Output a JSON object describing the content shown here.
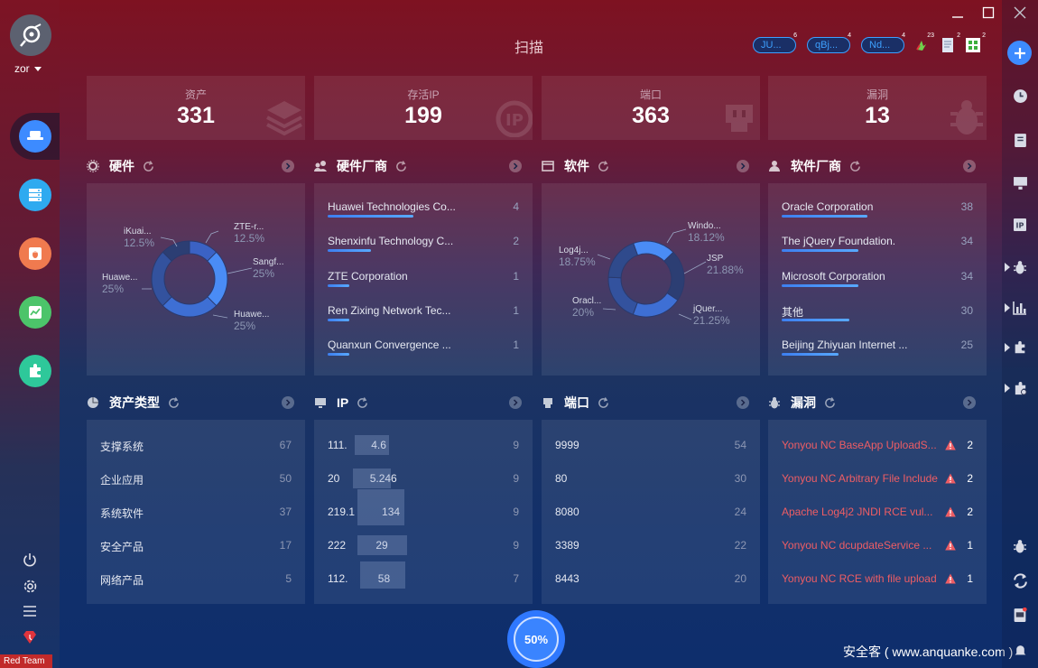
{
  "app": {
    "page_title": "扫描",
    "user_name": "zor",
    "watermark": "安全客 ( www.anquanke.com )",
    "progress_label": "50%",
    "progress_value": 0.5,
    "footer_badge": "Red Team"
  },
  "top_badges": [
    {
      "label": "JU...",
      "count": "6"
    },
    {
      "label": "qBj...",
      "count": "4"
    },
    {
      "label": "Nd...",
      "count": "4"
    }
  ],
  "top_icons": [
    {
      "name": "alert-icon",
      "count": "23"
    },
    {
      "name": "document-icon",
      "count": "2"
    },
    {
      "name": "plugin-icon",
      "count": "2"
    }
  ],
  "stats": [
    {
      "label": "资产",
      "value": "331"
    },
    {
      "label": "存活IP",
      "value": "199"
    },
    {
      "label": "端口",
      "value": "363"
    },
    {
      "label": "漏洞",
      "value": "13"
    }
  ],
  "sections": {
    "hardware": {
      "title": "硬件"
    },
    "hw_vendor": {
      "title": "硬件厂商"
    },
    "software": {
      "title": "软件"
    },
    "sw_vendor": {
      "title": "软件厂商"
    },
    "asset_type": {
      "title": "资产类型"
    },
    "ip": {
      "title": "IP"
    },
    "port": {
      "title": "端口"
    },
    "vuln": {
      "title": "漏洞"
    }
  },
  "hardware_pie": [
    {
      "label": "iKuai...",
      "pct": "12.5%",
      "value": 12.5
    },
    {
      "label": "ZTE-r...",
      "pct": "12.5%",
      "value": 12.5
    },
    {
      "label": "Sangf...",
      "pct": "25%",
      "value": 25
    },
    {
      "label": "Huawe...",
      "pct": "25%",
      "value": 25
    },
    {
      "label": "Huawe...",
      "pct": "25%",
      "value": 25
    }
  ],
  "software_pie": [
    {
      "label": "Windo...",
      "pct": "18.12%",
      "value": 18.12
    },
    {
      "label": "JSP",
      "pct": "21.88%",
      "value": 21.88
    },
    {
      "label": "jQuer...",
      "pct": "21.25%",
      "value": 21.25
    },
    {
      "label": "Oracl...",
      "pct": "20%",
      "value": 20
    },
    {
      "label": "Log4j...",
      "pct": "18.75%",
      "value": 18.75
    }
  ],
  "hw_vendors": [
    {
      "name": "Huawei Technologies Co...",
      "count": "4",
      "value": 4
    },
    {
      "name": "Shenxinfu Technology C...",
      "count": "2",
      "value": 2
    },
    {
      "name": "ZTE Corporation",
      "count": "1",
      "value": 1
    },
    {
      "name": "Ren Zixing Network Tec...",
      "count": "1",
      "value": 1
    },
    {
      "name": "Quanxun Convergence ...",
      "count": "1",
      "value": 1
    }
  ],
  "sw_vendors": [
    {
      "name": "Oracle Corporation",
      "count": "38",
      "value": 38
    },
    {
      "name": "The jQuery Foundation.",
      "count": "34",
      "value": 34
    },
    {
      "name": "Microsoft Corporation",
      "count": "34",
      "value": 34
    },
    {
      "name": "其他",
      "count": "30",
      "value": 30
    },
    {
      "name": "Beijing Zhiyuan Internet ...",
      "count": "25",
      "value": 25
    }
  ],
  "asset_types": [
    {
      "name": "支撑系统",
      "count": "67"
    },
    {
      "name": "企业应用",
      "count": "50"
    },
    {
      "name": "系统软件",
      "count": "37"
    },
    {
      "name": "安全产品",
      "count": "17"
    },
    {
      "name": "网络产品",
      "count": "5"
    }
  ],
  "ips": [
    {
      "ip": "111.        4.6",
      "count": "9"
    },
    {
      "ip": "20          5.246",
      "count": "9"
    },
    {
      "ip": "219.1         134",
      "count": "9"
    },
    {
      "ip": "222          29",
      "count": "9"
    },
    {
      "ip": "112.          58",
      "count": "7"
    }
  ],
  "ports": [
    {
      "port": "9999",
      "count": "54"
    },
    {
      "port": "80",
      "count": "30"
    },
    {
      "port": "8080",
      "count": "24"
    },
    {
      "port": "3389",
      "count": "22"
    },
    {
      "port": "8443",
      "count": "20"
    }
  ],
  "vulns": [
    {
      "name": "Yonyou NC BaseApp UploadS...",
      "count": "2"
    },
    {
      "name": "Yonyou NC Arbitrary File Include",
      "count": "2"
    },
    {
      "name": "Apache Log4j2 JNDI RCE vul...",
      "count": "2"
    },
    {
      "name": "Yonyou NC dcupdateService ...",
      "count": "1"
    },
    {
      "name": "Yonyou NC RCE with file upload",
      "count": "1"
    }
  ],
  "colors": {
    "accent": "#3d8bff",
    "danger": "#ee5d64",
    "bar": "#3d7ff0"
  }
}
